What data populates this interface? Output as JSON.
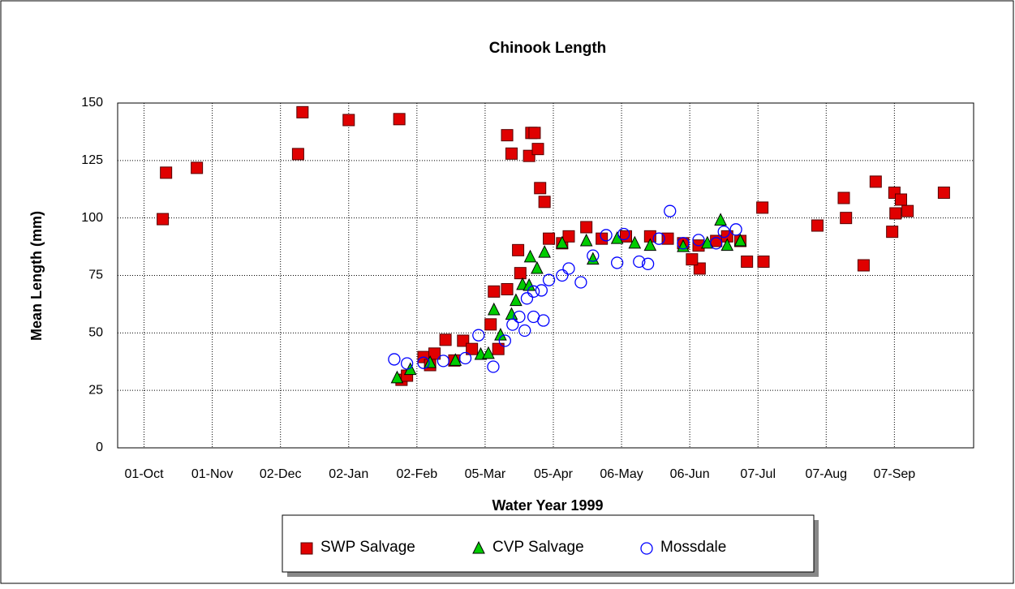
{
  "chart_data": {
    "type": "scatter",
    "title": "Chinook Length",
    "xlabel": "Water Year 1999",
    "ylabel": "Mean Length (mm)",
    "xlim": [
      -12,
      377
    ],
    "ylim": [
      0,
      150
    ],
    "xticks": [
      {
        "value": 0,
        "label": "01-Oct"
      },
      {
        "value": 31,
        "label": "01-Nov"
      },
      {
        "value": 62,
        "label": "02-Dec"
      },
      {
        "value": 93,
        "label": "02-Jan"
      },
      {
        "value": 124,
        "label": "02-Feb"
      },
      {
        "value": 155,
        "label": "05-Mar"
      },
      {
        "value": 186,
        "label": "05-Apr"
      },
      {
        "value": 217,
        "label": "06-May"
      },
      {
        "value": 248,
        "label": "06-Jun"
      },
      {
        "value": 279,
        "label": "07-Jul"
      },
      {
        "value": 310,
        "label": "07-Aug"
      },
      {
        "value": 341,
        "label": "07-Sep"
      }
    ],
    "yticks": [
      0,
      25,
      50,
      75,
      100,
      125,
      150
    ],
    "grid": true,
    "series": [
      {
        "name": "SWP Salvage",
        "color": "#e00000",
        "marker": "square",
        "x": [
          8.5,
          10,
          24,
          70,
          72,
          93,
          116,
          165,
          167,
          176,
          177.5,
          175,
          179,
          180,
          182,
          170,
          171,
          159,
          165,
          184,
          201,
          281,
          281.5,
          274,
          252.5,
          249,
          306,
          318,
          319,
          327,
          332.5,
          340,
          341,
          341.5,
          344,
          347,
          363.5,
          117,
          119.5,
          127,
          132,
          137,
          145,
          149,
          157.5,
          161,
          190,
          193,
          208,
          219,
          230,
          238,
          245,
          252,
          260,
          265,
          271,
          141,
          130
        ],
        "values": [
          99.5,
          119.7,
          121.8,
          127.8,
          146,
          142.6,
          143,
          136,
          128,
          137,
          137,
          127,
          130,
          113,
          107,
          86,
          76,
          68,
          69,
          91,
          96,
          104.5,
          81,
          81,
          78,
          82,
          96.7,
          108.7,
          100,
          79.4,
          115.8,
          94,
          111,
          102,
          108,
          103,
          111,
          29.6,
          31.4,
          39.5,
          41,
          47,
          46.6,
          43,
          53.7,
          43,
          89,
          92,
          91,
          92,
          92,
          91,
          89,
          88,
          90,
          92,
          90,
          38,
          36
        ]
      },
      {
        "name": "CVP Salvage",
        "color": "#00cc00",
        "marker": "triangle",
        "x": [
          115,
          121,
          130,
          141.5,
          153,
          156.5,
          159,
          162,
          167,
          169,
          172,
          175,
          175.5,
          178.6,
          182,
          190,
          201,
          215,
          230,
          245,
          256,
          262,
          265,
          271,
          223,
          204
        ],
        "values": [
          30.4,
          34,
          37,
          38,
          40.6,
          41,
          60,
          49,
          58,
          64,
          71,
          70.6,
          83,
          78,
          85,
          89,
          90,
          91,
          88,
          87.5,
          89,
          99,
          88,
          90,
          89,
          82
        ]
      },
      {
        "name": "Mossdale",
        "color": "#0000ff",
        "marker": "circle",
        "x": [
          113.7,
          119.5,
          127,
          136,
          146,
          152,
          158.7,
          164,
          167.5,
          170.5,
          173,
          177,
          181.5,
          174,
          177,
          180.6,
          184,
          190,
          193,
          198.5,
          204,
          210,
          215,
          218,
          225,
          229,
          234,
          239,
          245,
          252,
          260,
          263.5,
          269
        ],
        "values": [
          38.5,
          36.7,
          37,
          37.8,
          39,
          49,
          35.3,
          46.6,
          53.6,
          57,
          51,
          57,
          55.4,
          65,
          68,
          68.5,
          73,
          75,
          78,
          72,
          83.6,
          92.5,
          80.5,
          93,
          81,
          80,
          91,
          103,
          89,
          90.4,
          89,
          94,
          95
        ]
      }
    ]
  }
}
